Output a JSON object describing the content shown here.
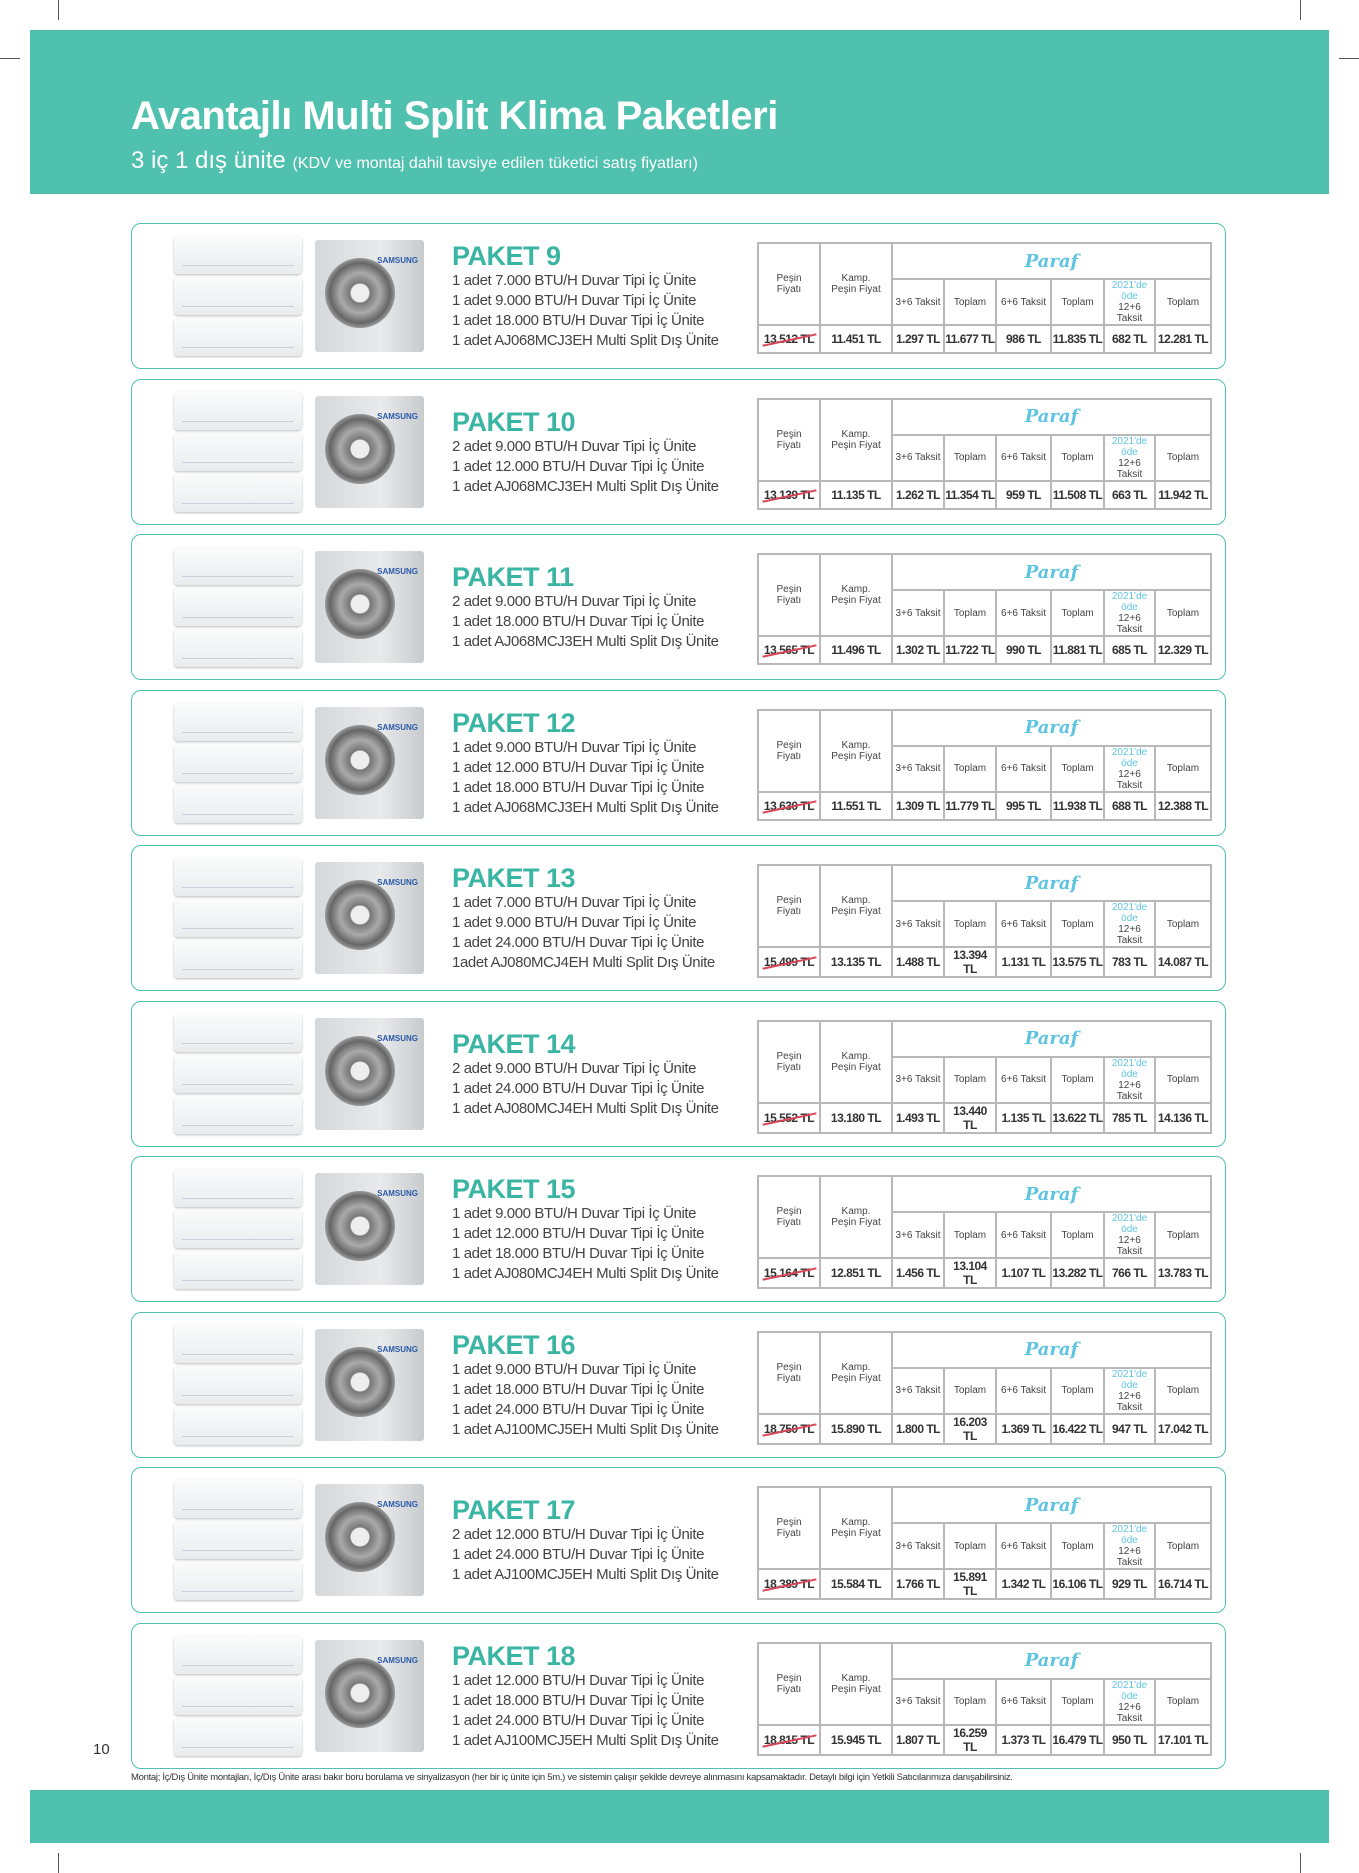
{
  "header": {
    "title": "Avantajlı Multi Split Klima Paketleri",
    "subtitle_main": "3 iç 1 dış ünite",
    "subtitle_note": "(KDV ve montaj dahil tavsiye edilen tüketici satış fiyatları)"
  },
  "colors": {
    "accent": "#4fc1ae",
    "title": "#3bb5a3",
    "paraf": "#5fc4e0",
    "strike": "#d9465a"
  },
  "table_headers": {
    "pesin": [
      "Peşin",
      "Fiyatı"
    ],
    "kamp": [
      "Kamp.",
      "Peşin Fiyat"
    ],
    "logo": "Paraf",
    "t36": "3+6 Taksit",
    "toplam": "Toplam",
    "t66": "6+6 Taksit",
    "ode_2021": [
      "2021'de",
      "öde"
    ],
    "t126": "12+6 Taksit"
  },
  "brand_label": "SAMSUNG",
  "packages": [
    {
      "title": "PAKET 9",
      "lines": [
        "1 adet 7.000 BTU/H Duvar Tipi İç Ünite",
        "1 adet 9.000 BTU/H Duvar Tipi İç Ünite",
        "1 adet 18.000 BTU/H Duvar Tipi İç Ünite",
        "1 adet AJ068MCJ3EH Multi Split Dış Ünite"
      ],
      "prices": [
        "13.512 TL",
        "11.451 TL",
        "1.297 TL",
        "11.677 TL",
        "986 TL",
        "11.835 TL",
        "682 TL",
        "12.281 TL"
      ]
    },
    {
      "title": "PAKET 10",
      "lines": [
        "2 adet 9.000 BTU/H Duvar Tipi İç Ünite",
        "1 adet 12.000 BTU/H Duvar Tipi İç Ünite",
        "1 adet AJ068MCJ3EH Multi Split Dış Ünite"
      ],
      "prices": [
        "13.139 TL",
        "11.135 TL",
        "1.262 TL",
        "11.354 TL",
        "959 TL",
        "11.508 TL",
        "663 TL",
        "11.942 TL"
      ]
    },
    {
      "title": "PAKET 11",
      "lines": [
        "2 adet 9.000 BTU/H Duvar Tipi İç Ünite",
        "1 adet 18.000 BTU/H Duvar Tipi İç Ünite",
        "1 adet AJ068MCJ3EH Multi Split Dış Ünite"
      ],
      "prices": [
        "13.565 TL",
        "11.496 TL",
        "1.302 TL",
        "11.722 TL",
        "990 TL",
        "11.881 TL",
        "685 TL",
        "12.329 TL"
      ]
    },
    {
      "title": "PAKET 12",
      "lines": [
        "1 adet 9.000 BTU/H Duvar Tipi İç Ünite",
        "1 adet 12.000 BTU/H Duvar Tipi İç Ünite",
        "1 adet 18.000 BTU/H Duvar Tipi İç Ünite",
        "1 adet AJ068MCJ3EH Multi Split Dış Ünite"
      ],
      "prices": [
        "13.630 TL",
        "11.551 TL",
        "1.309 TL",
        "11.779 TL",
        "995 TL",
        "11.938 TL",
        "688 TL",
        "12.388 TL"
      ]
    },
    {
      "title": "PAKET 13",
      "lines": [
        "1 adet 7.000 BTU/H Duvar Tipi İç Ünite",
        "1 adet 9.000 BTU/H Duvar Tipi İç Ünite",
        "1 adet 24.000 BTU/H Duvar Tipi İç Ünite",
        "1adet AJ080MCJ4EH Multi Split Dış Ünite"
      ],
      "prices": [
        "15.499 TL",
        "13.135 TL",
        "1.488 TL",
        "13.394 TL",
        "1.131 TL",
        "13.575 TL",
        "783 TL",
        "14.087 TL"
      ]
    },
    {
      "title": "PAKET 14",
      "lines": [
        "2 adet 9.000 BTU/H Duvar Tipi İç Ünite",
        "1 adet 24.000 BTU/H Duvar Tipi İç Ünite",
        "1 adet AJ080MCJ4EH Multi Split Dış Ünite"
      ],
      "prices": [
        "15.552 TL",
        "13.180 TL",
        "1.493 TL",
        "13.440 TL",
        "1.135 TL",
        "13.622 TL",
        "785 TL",
        "14.136 TL"
      ]
    },
    {
      "title": "PAKET 15",
      "lines": [
        "1 adet 9.000 BTU/H Duvar Tipi İç Ünite",
        "1 adet 12.000 BTU/H Duvar Tipi İç Ünite",
        "1 adet 18.000 BTU/H Duvar Tipi İç Ünite",
        "1 adet AJ080MCJ4EH Multi Split Dış Ünite"
      ],
      "prices": [
        "15.164 TL",
        "12.851 TL",
        "1.456 TL",
        "13.104 TL",
        "1.107 TL",
        "13.282 TL",
        "766 TL",
        "13.783 TL"
      ]
    },
    {
      "title": "PAKET 16",
      "lines": [
        "1 adet 9.000 BTU/H Duvar Tipi İç Ünite",
        "1 adet 18.000 BTU/H Duvar Tipi İç Ünite",
        "1 adet 24.000 BTU/H Duvar Tipi İç Ünite",
        "1 adet AJ100MCJ5EH Multi Split Dış Ünite"
      ],
      "prices": [
        "18.750 TL",
        "15.890 TL",
        "1.800 TL",
        "16.203 TL",
        "1.369 TL",
        "16.422 TL",
        "947 TL",
        "17.042 TL"
      ]
    },
    {
      "title": "PAKET 17",
      "lines": [
        "2 adet 12.000 BTU/H Duvar Tipi İç Ünite",
        "1 adet 24.000 BTU/H Duvar Tipi İç Ünite",
        "1 adet AJ100MCJ5EH Multi Split Dış Ünite"
      ],
      "prices": [
        "18.389 TL",
        "15.584 TL",
        "1.766 TL",
        "15.891 TL",
        "1.342 TL",
        "16.106 TL",
        "929 TL",
        "16.714 TL"
      ]
    },
    {
      "title": "PAKET 18",
      "lines": [
        "1 adet 12.000 BTU/H Duvar Tipi İç Ünite",
        "1 adet 18.000 BTU/H Duvar Tipi İç Ünite",
        "1 adet 24.000 BTU/H Duvar Tipi İç Ünite",
        "1 adet AJ100MCJ5EH Multi Split Dış Ünite"
      ],
      "prices": [
        "18.815 TL",
        "15.945 TL",
        "1.807 TL",
        "16.259 TL",
        "1.373 TL",
        "16.479 TL",
        "950 TL",
        "17.101 TL"
      ]
    }
  ],
  "page_number": "10",
  "footnote": "Montaj; İç/Dış Ünite montajları, İç/Dış Ünite arası bakır boru borulama ve sinyalizasyon (her bir iç ünite için 5m.) ve sistemin çalışır şekilde devreye alınmasını kapsamaktadır. Detaylı bilgi için Yetkili Satıcılarımıza danışabilirsiniz."
}
